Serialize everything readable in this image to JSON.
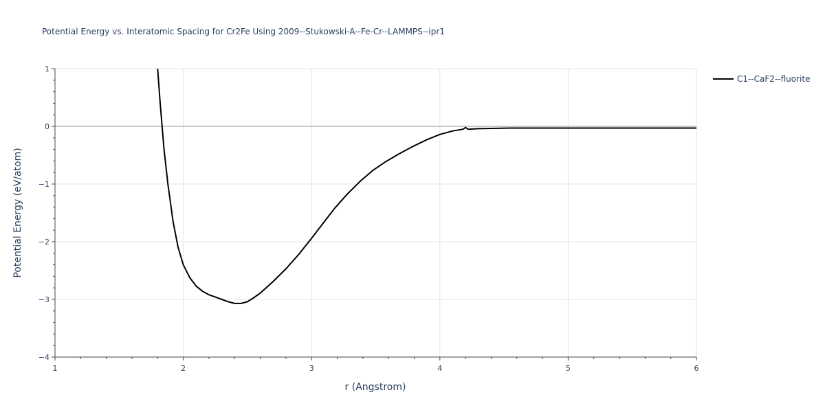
{
  "chart_data": {
    "type": "line",
    "title": "Potential Energy vs. Interatomic Spacing for Cr2Fe Using 2009--Stukowski-A--Fe-Cr--LAMMPS--ipr1",
    "xlabel": "r (Angstrom)",
    "ylabel": "Potential Energy (eV/atom)",
    "xlim": [
      1,
      6
    ],
    "ylim": [
      -4,
      1
    ],
    "x_ticks": [
      1,
      2,
      3,
      4,
      5,
      6
    ],
    "y_ticks": [
      1,
      0,
      -1,
      -2,
      -3,
      -4
    ],
    "x_tick_labels": [
      "1",
      "2",
      "3",
      "4",
      "5",
      "6"
    ],
    "y_tick_labels": [
      "1",
      "0",
      "−1",
      "−2",
      "−3",
      "−4"
    ],
    "grid": true,
    "legend_position": "top-right",
    "series": [
      {
        "name": "C1--CaF2--fluorite",
        "color": "#000000",
        "x": [
          1.8,
          1.82,
          1.85,
          1.88,
          1.92,
          1.96,
          2.0,
          2.05,
          2.1,
          2.15,
          2.2,
          2.25,
          2.3,
          2.35,
          2.4,
          2.45,
          2.5,
          2.55,
          2.6,
          2.7,
          2.8,
          2.9,
          3.0,
          3.1,
          3.18,
          3.28,
          3.38,
          3.48,
          3.58,
          3.68,
          3.78,
          3.9,
          4.0,
          4.1,
          4.18,
          4.2,
          4.22,
          4.3,
          4.55,
          5.0,
          5.5,
          6.0
        ],
        "y": [
          1.0,
          0.4,
          -0.4,
          -1.0,
          -1.65,
          -2.1,
          -2.4,
          -2.62,
          -2.77,
          -2.86,
          -2.92,
          -2.96,
          -3.0,
          -3.04,
          -3.07,
          -3.07,
          -3.04,
          -2.97,
          -2.89,
          -2.69,
          -2.47,
          -2.22,
          -1.94,
          -1.65,
          -1.42,
          -1.17,
          -0.95,
          -0.76,
          -0.61,
          -0.48,
          -0.36,
          -0.23,
          -0.14,
          -0.08,
          -0.05,
          -0.02,
          -0.05,
          -0.04,
          -0.03,
          -0.03,
          -0.03,
          -0.03
        ]
      }
    ]
  }
}
